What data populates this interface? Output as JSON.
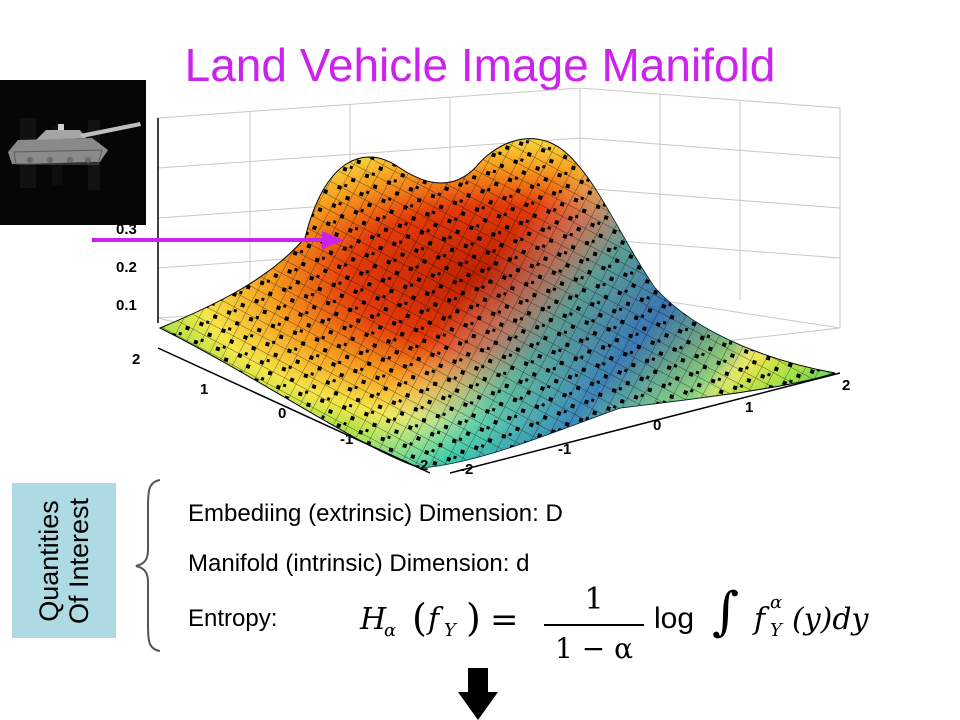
{
  "title": "Land Vehicle Image Manifold",
  "plot": {
    "z_ticks": [
      "0.3",
      "0.2",
      "0.1"
    ],
    "y_ticks": [
      "2",
      "1",
      "0",
      "-1",
      "-2"
    ],
    "x_ticks": [
      "-2",
      "-1",
      "0",
      "1",
      "2"
    ],
    "color_high": "#cc2200",
    "color_low": "#1a7ad0"
  },
  "side_label": {
    "line1": "Quantities",
    "line2": "Of Interest"
  },
  "quantities": {
    "embedding": "Embediing (extrinsic) Dimension:  D",
    "manifold": "Manifold (intrinsic) Dimension:  d",
    "entropy": "Entropy:"
  },
  "formula": {
    "lhs_H": "H",
    "lhs_sub": "α",
    "lhs_arg_f": "f",
    "lhs_arg_sub": "Y",
    "numerator": "1",
    "denominator": "1 − α",
    "log": "log",
    "integral": "∫",
    "f": "f",
    "f_sup": "α",
    "f_sub": "Y",
    "tail": "(y)dy"
  },
  "colors": {
    "title": "#cc22ee",
    "arrow": "#cc22ee",
    "side_box": "#aedbe3"
  },
  "icons": {
    "tank_thumbnail": "tank-image-icon",
    "pointer": "arrow-right-icon",
    "next": "arrow-down-icon"
  }
}
